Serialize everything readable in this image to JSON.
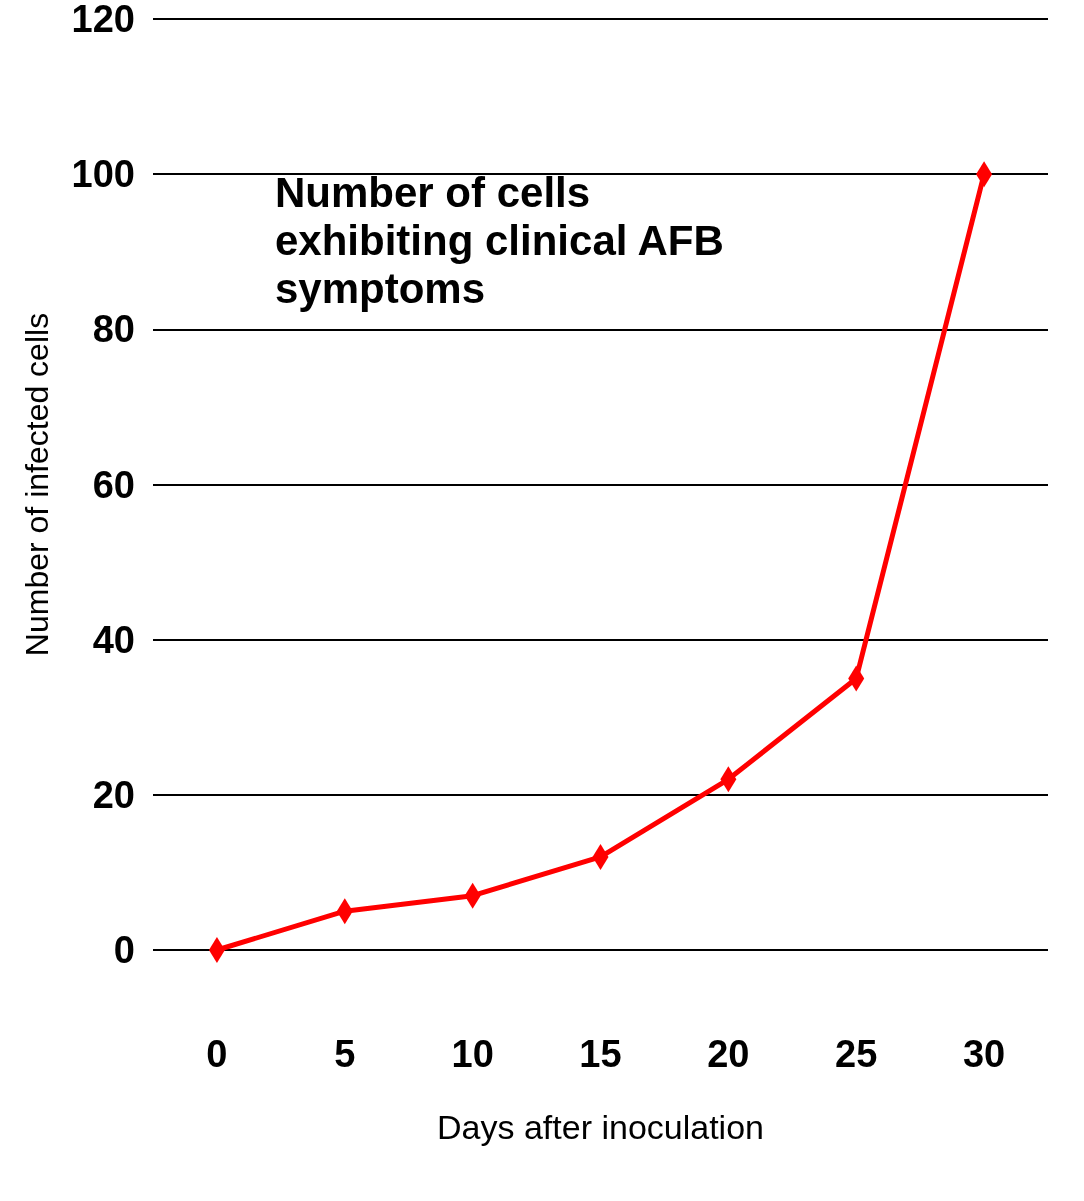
{
  "chart_data": {
    "type": "line",
    "xlabel": "Days after inoculation",
    "ylabel": "Number of infected cells",
    "annotations": [
      "Number of cells exhibiting clinical AFB symptoms"
    ],
    "x": [
      0,
      5,
      10,
      15,
      20,
      25,
      30
    ],
    "series": [
      {
        "color": "#ff0000",
        "values": [
          0,
          5,
          7,
          12,
          22,
          35,
          100
        ]
      }
    ],
    "xlim": [
      -2.5,
      32.5
    ],
    "xticks": [
      0,
      5,
      10,
      15,
      20,
      25,
      30
    ],
    "ylim": [
      0,
      120
    ],
    "yticks": [
      0,
      20,
      40,
      60,
      80,
      100,
      120
    ],
    "grid": "y",
    "marker": "diamond",
    "line_style": "solid"
  }
}
